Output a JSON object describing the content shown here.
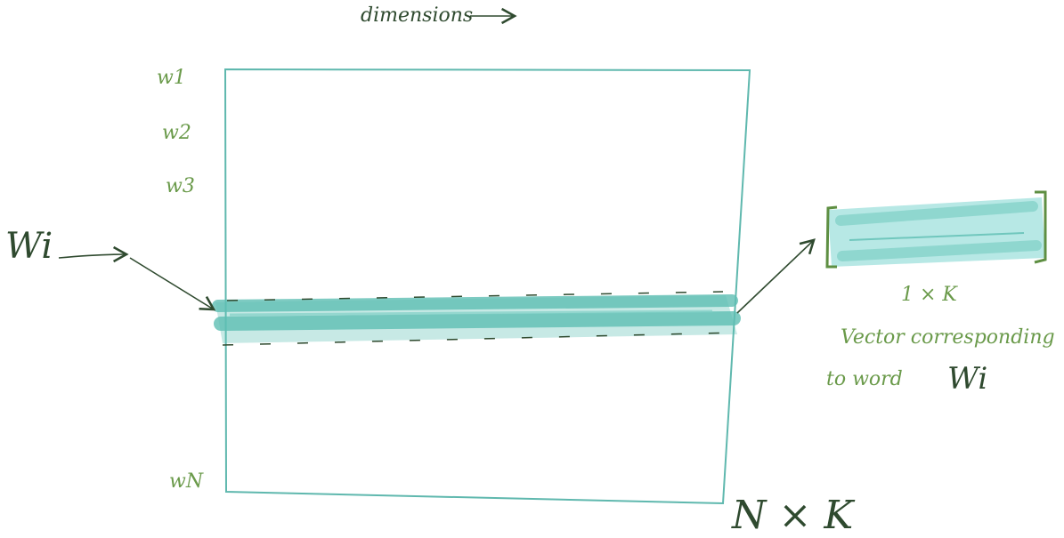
{
  "header": {
    "dimensions_label": "dimensions"
  },
  "matrix": {
    "row_labels": [
      "w1",
      "w2",
      "w3",
      "wN"
    ],
    "size_label": "N × K"
  },
  "pointer_label": "Wi",
  "vector": {
    "size_label": "1 × K",
    "caption_line1": "Vector corresponding",
    "caption_line2_prefix": "to word",
    "caption_word": "Wi"
  },
  "colors": {
    "matrix_border": "#5fb8ae",
    "highlight": "#5fbfb4",
    "vector_fill": "#9fe0dc",
    "green_text": "#6a9a4a",
    "dark_text": "#2f4a2f",
    "bracket": "#5e8f42"
  }
}
